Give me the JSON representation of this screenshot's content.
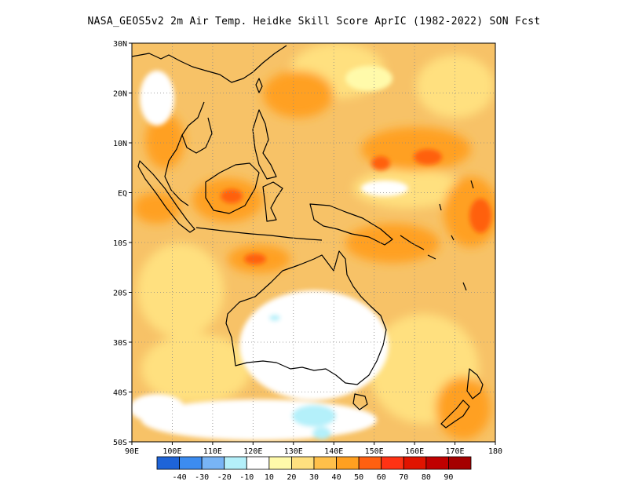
{
  "title": "NASA_GEOS5v2  2m Air Temp. Heidke Skill Score AprIC (1982-2022) SON Fcst",
  "map": {
    "lon_range": [
      90,
      180
    ],
    "lat_range": [
      -50,
      30
    ],
    "lon_ticks": [
      {
        "value": 90,
        "label": "90E"
      },
      {
        "value": 100,
        "label": "100E"
      },
      {
        "value": 110,
        "label": "110E"
      },
      {
        "value": 120,
        "label": "120E"
      },
      {
        "value": 130,
        "label": "130E"
      },
      {
        "value": 140,
        "label": "140E"
      },
      {
        "value": 150,
        "label": "150E"
      },
      {
        "value": 160,
        "label": "160E"
      },
      {
        "value": 170,
        "label": "170E"
      },
      {
        "value": 180,
        "label": "180"
      }
    ],
    "lat_ticks": [
      {
        "value": 30,
        "label": "30N"
      },
      {
        "value": 20,
        "label": "20N"
      },
      {
        "value": 10,
        "label": "10N"
      },
      {
        "value": 0,
        "label": "EQ"
      },
      {
        "value": -10,
        "label": "10S"
      },
      {
        "value": -20,
        "label": "20S"
      },
      {
        "value": -30,
        "label": "30S"
      },
      {
        "value": -40,
        "label": "40S"
      },
      {
        "value": -50,
        "label": "50S"
      }
    ],
    "background_color": "#f7c267",
    "coastline_color": "#000000",
    "grid": "dotted"
  },
  "colorbar": {
    "bins": [
      {
        "color": "#1e64d8"
      },
      {
        "color": "#3c8cf0"
      },
      {
        "color": "#78b4f5"
      },
      {
        "color": "#b4f0fa"
      },
      {
        "color": "#ffffff"
      },
      {
        "color": "#fffaaa"
      },
      {
        "color": "#ffe07f"
      },
      {
        "color": "#ffc04a"
      },
      {
        "color": "#ffa020"
      },
      {
        "color": "#ff6010"
      },
      {
        "color": "#ff3214"
      },
      {
        "color": "#e11400"
      },
      {
        "color": "#c00000"
      },
      {
        "color": "#a50000"
      }
    ],
    "labels": [
      "-40",
      "-30",
      "-20",
      "-10",
      "10",
      "20",
      "30",
      "40",
      "50",
      "60",
      "70",
      "80",
      "90"
    ]
  }
}
